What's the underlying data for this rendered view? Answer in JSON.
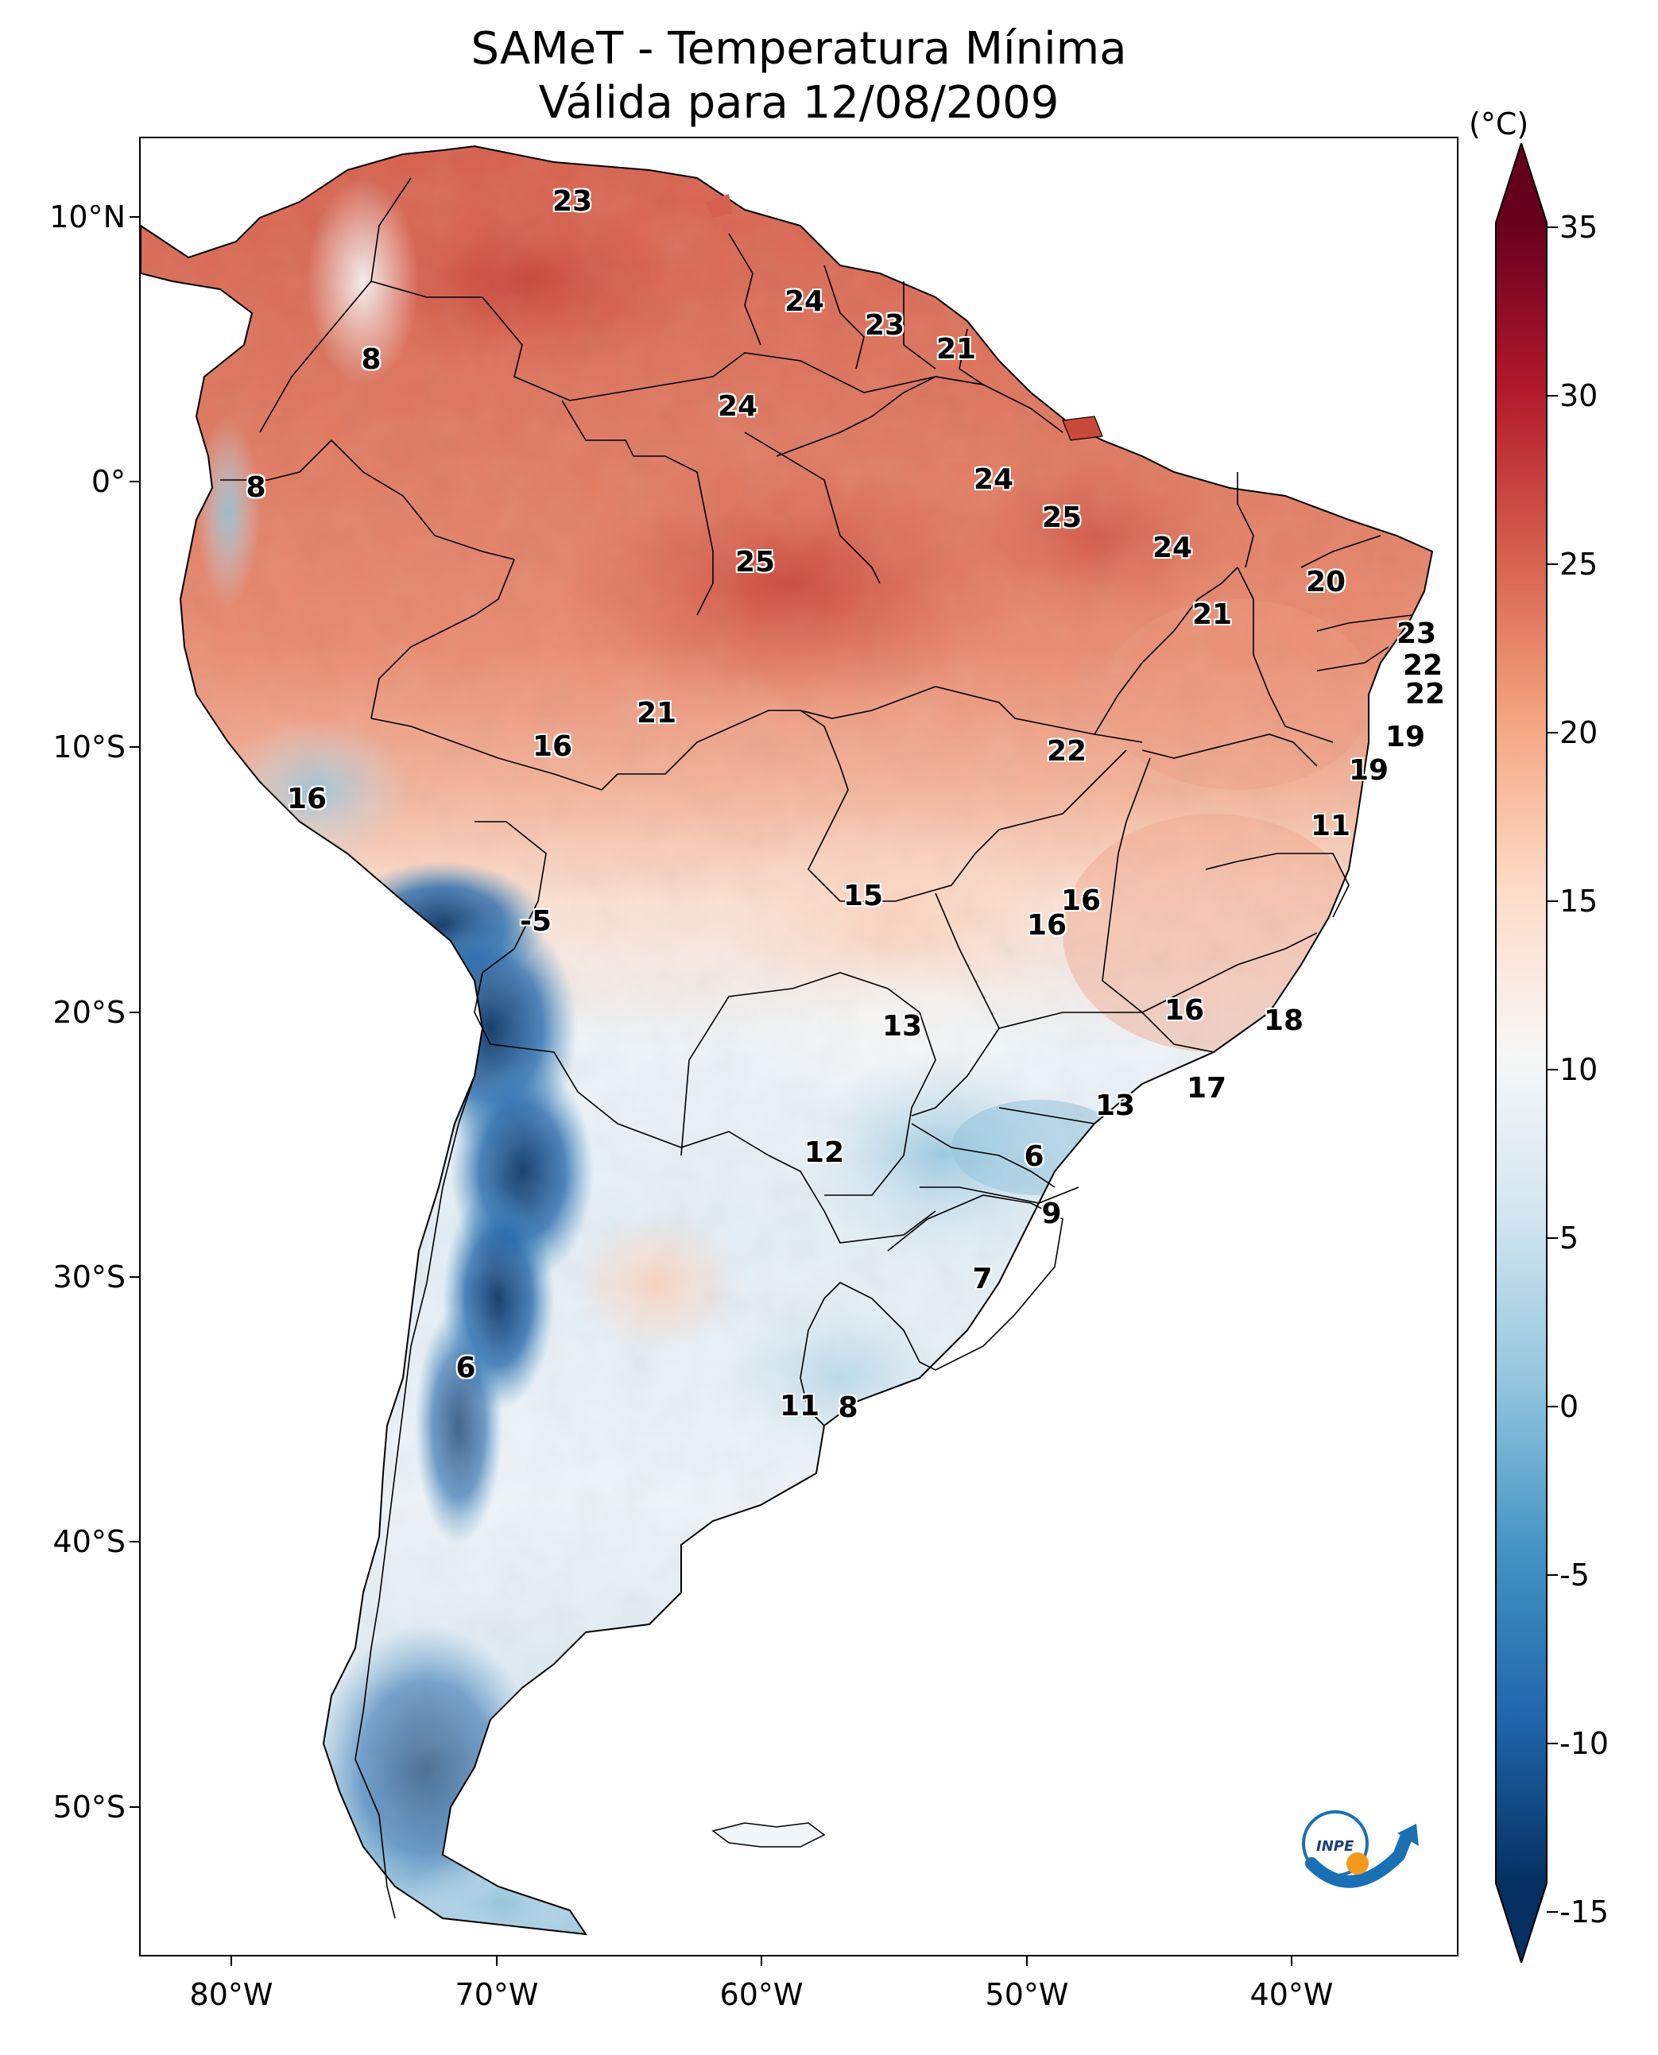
{
  "title": {
    "line1": "SAMeT - Temperatura Mínima",
    "line2": "Válida para 12/08/2009"
  },
  "axes": {
    "lat_labels": [
      "10°N",
      "0°",
      "10°S",
      "20°S",
      "30°S",
      "40°S",
      "50°S"
    ],
    "lon_labels": [
      "80°W",
      "70°W",
      "60°W",
      "50°W",
      "40°W"
    ]
  },
  "colorbar": {
    "unit": "(°C)",
    "ticks": [
      "35",
      "30",
      "25",
      "20",
      "15",
      "10",
      "5",
      "0",
      "-5",
      "-10",
      "-15"
    ],
    "colors": [
      "#67001f",
      "#b2182b",
      "#d6604d",
      "#f4a582",
      "#fddbc7",
      "#f7f7f7",
      "#d1e5f0",
      "#92c5de",
      "#4393c3",
      "#2166ac",
      "#053061"
    ]
  },
  "city_values": [
    "23",
    "24",
    "23",
    "21",
    "24",
    "8",
    "8",
    "24",
    "25",
    "25",
    "24",
    "20",
    "21",
    "23",
    "22",
    "22",
    "21",
    "16",
    "22",
    "19",
    "19",
    "16",
    "11",
    "15",
    "16",
    "16",
    "-5",
    "16",
    "13",
    "18",
    "17",
    "13",
    "12",
    "6",
    "9",
    "7",
    "6",
    "11",
    "8"
  ],
  "logo": {
    "text": "INPE"
  }
}
